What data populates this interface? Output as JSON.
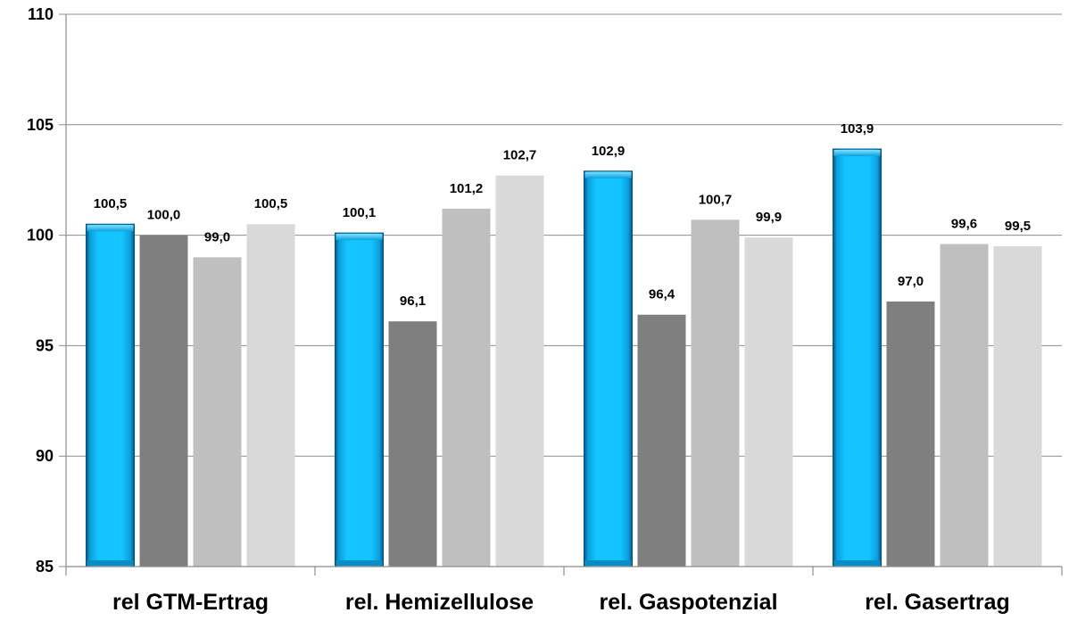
{
  "chart_data": {
    "type": "bar",
    "title": "",
    "xlabel": "",
    "ylabel": "",
    "categories": [
      "rel GTM-Ertrag",
      "rel. Hemizellulose",
      "rel. Gaspotenzial",
      "rel. Gasertrag"
    ],
    "series": [
      {
        "values": [
          100.5,
          100.1,
          102.9,
          103.9
        ],
        "color": "#0cb8f4",
        "style": "3d-highlighted"
      },
      {
        "values": [
          100.0,
          96.1,
          96.4,
          97.0
        ],
        "color": "#7f7f7f"
      },
      {
        "values": [
          99.0,
          101.2,
          100.7,
          99.6
        ],
        "color": "#bfbfbf"
      },
      {
        "values": [
          100.5,
          102.7,
          99.9,
          99.5
        ],
        "color": "#d9d9d9"
      }
    ],
    "data_labels": [
      [
        "100,5",
        "100,0",
        "99,0",
        "100,5"
      ],
      [
        "100,1",
        "96,1",
        "101,2",
        "102,7"
      ],
      [
        "102,9",
        "96,4",
        "100,7",
        "99,9"
      ],
      [
        "103,9",
        "97,0",
        "99,6",
        "99,5"
      ]
    ],
    "ylim": [
      85,
      110
    ],
    "yticks": [
      85,
      90,
      95,
      100,
      105,
      110
    ],
    "ytick_labels": [
      "85",
      "90",
      "95",
      "100",
      "105",
      "110"
    ],
    "grid": true,
    "legend": "none"
  }
}
